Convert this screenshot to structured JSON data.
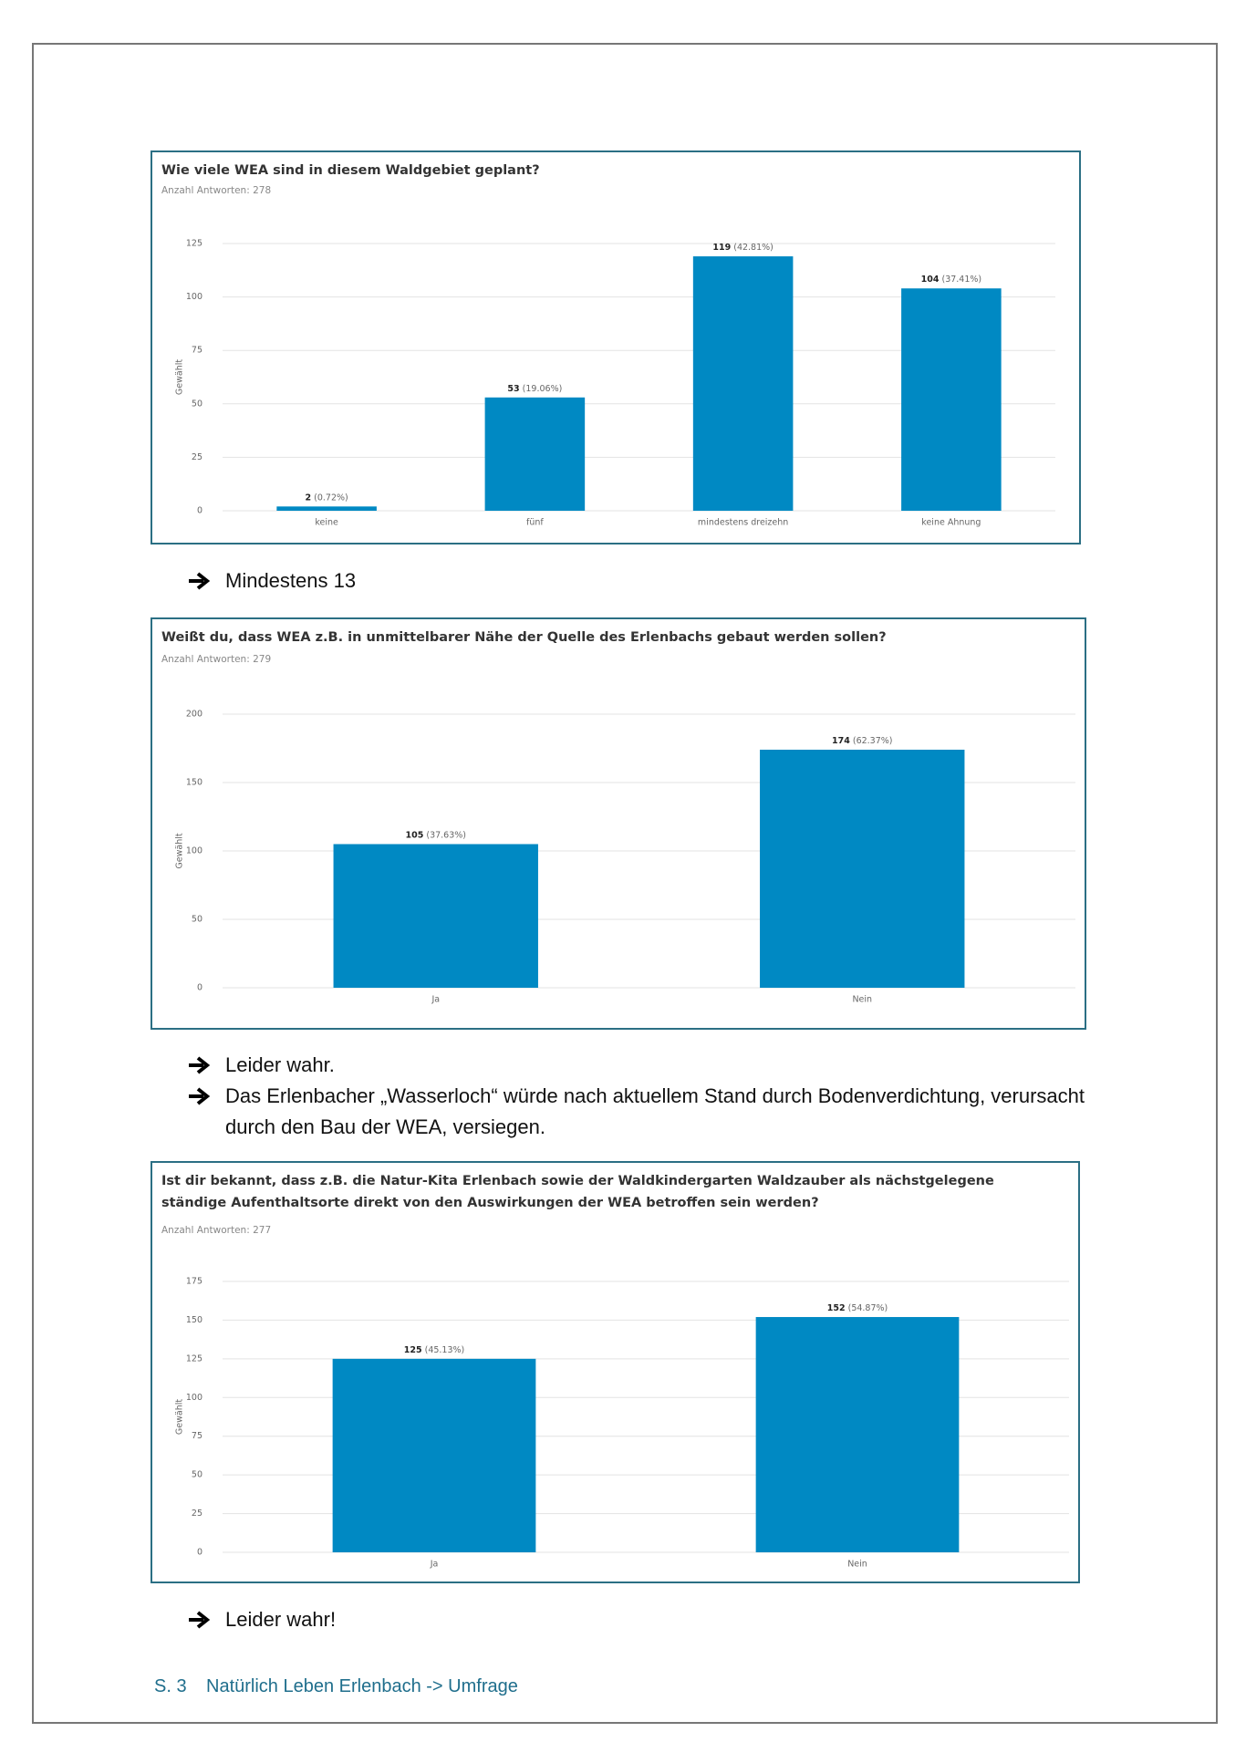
{
  "chart_data": [
    {
      "type": "bar",
      "title": "Wie viele WEA sind in diesem Waldgebiet geplant?",
      "subtitle": "Anzahl Antworten: 278",
      "ylabel": "Gewählt",
      "categories": [
        "keine",
        "fünf",
        "mindestens dreizehn",
        "keine Ahnung"
      ],
      "values": [
        2,
        53,
        119,
        104
      ],
      "value_labels": [
        "2 (0.72%)",
        "53 (19.06%)",
        "119 (42.81%)",
        "104 (37.41%)"
      ],
      "color": "#0089c3",
      "ylim": [
        0,
        125
      ],
      "yticks": [
        0,
        25,
        50,
        75,
        100,
        125
      ],
      "grid": true
    },
    {
      "type": "bar",
      "title": "Weißt du, dass WEA z.B. in unmittelbarer Nähe der Quelle des Erlenbachs gebaut werden sollen?",
      "subtitle": "Anzahl Antworten: 279",
      "ylabel": "Gewählt",
      "categories": [
        "Ja",
        "Nein"
      ],
      "values": [
        105,
        174
      ],
      "value_labels": [
        "105 (37.63%)",
        "174 (62.37%)"
      ],
      "color": "#0089c3",
      "ylim": [
        0,
        200
      ],
      "yticks": [
        0,
        50,
        100,
        150,
        200
      ],
      "grid": true
    },
    {
      "type": "bar",
      "title": "Ist dir bekannt, dass z.B. die Natur-Kita Erlenbach sowie der Waldkindergarten Waldzauber als nächstgelegene ständige Aufenthaltsorte direkt von den Auswirkungen der WEA betroffen sein werden?",
      "subtitle": "Anzahl Antworten: 277",
      "ylabel": "Gewählt",
      "categories": [
        "Ja",
        "Nein"
      ],
      "values": [
        125,
        152
      ],
      "value_labels": [
        "125 (45.13%)",
        "152 (54.87%)"
      ],
      "color": "#0089c3",
      "ylim": [
        0,
        175
      ],
      "yticks": [
        0,
        25,
        50,
        75,
        100,
        125,
        150,
        175
      ],
      "grid": true
    }
  ],
  "notes": [
    "Mindestens 13",
    "Leider wahr.",
    "Das Erlenbacher „Wasserloch“ würde nach aktuellem Stand durch Bodenverdichtung, verursacht durch den Bau der WEA, versiegen.",
    "Leider wahr!"
  ],
  "footer": {
    "page": "S. 3",
    "text": "Natürlich Leben Erlenbach -> Umfrage"
  }
}
